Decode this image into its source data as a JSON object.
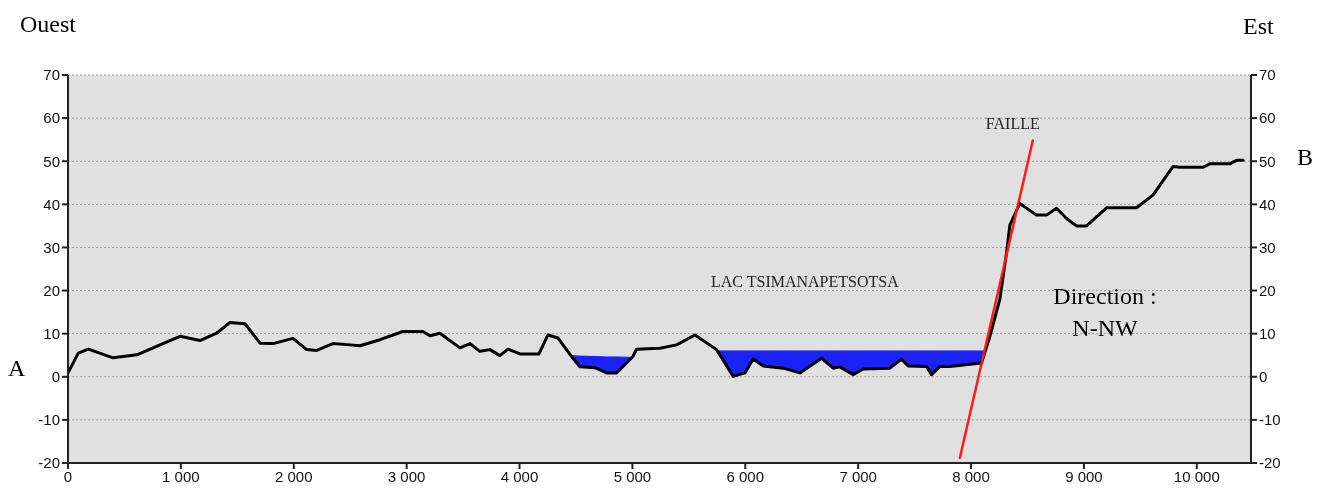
{
  "chart_data": {
    "type": "line",
    "xlim": [
      0,
      10480
    ],
    "xticks": [
      0,
      {
        "value": 1000,
        "label": "1 000"
      },
      {
        "value": 2000,
        "label": "2 000"
      },
      {
        "value": 3000,
        "label": "3 000"
      },
      {
        "value": 4000,
        "label": "4 000"
      },
      {
        "value": 5000,
        "label": "5 000"
      },
      {
        "value": 6000,
        "label": "6 000"
      },
      {
        "value": 7000,
        "label": "7 000"
      },
      {
        "value": 8000,
        "label": "8 000"
      },
      {
        "value": 9000,
        "label": "9 000"
      },
      {
        "value": 10000,
        "label": "10 000"
      }
    ],
    "ylim": [
      -20,
      70
    ],
    "yticks": [
      -20,
      -10,
      0,
      10,
      20,
      30,
      40,
      50,
      60,
      70
    ],
    "y2lim": [
      -20,
      70
    ],
    "y2ticks": [
      -20,
      -10,
      0,
      10,
      20,
      30,
      40,
      50,
      60,
      70
    ],
    "grid": "y",
    "line_style": "solid",
    "series": [
      {
        "type": "area",
        "color": "#1a22f5",
        "x": [
          4461,
          4535,
          4668,
          4772,
          4860,
          5004
        ],
        "values": [
          4.9,
          4.8,
          4.7,
          4.6,
          4.6,
          4.5
        ]
      },
      {
        "type": "area",
        "color": "#1a22f5",
        "x": [
          5746,
          5893,
          5997,
          6070,
          6159,
          6336,
          6484,
          6676,
          6779,
          6838,
          6956,
          7045,
          7281,
          7384,
          7443,
          7606,
          7650,
          7724,
          7812,
          8093,
          8120
        ],
        "values": [
          6.0,
          6.0,
          6.0,
          6.0,
          6.0,
          6.0,
          6.0,
          6.0,
          6.0,
          6.0,
          6.0,
          6.0,
          6.0,
          6.0,
          6.0,
          6.0,
          6.0,
          6.0,
          6.0,
          6.0,
          6.0
        ]
      },
      {
        "color": "#000000",
        "x": [
          0,
          91,
          180,
          399,
          611,
          815,
          992,
          1169,
          1317,
          1435,
          1568,
          1701,
          1816,
          1993,
          2114,
          2203,
          2347,
          2498,
          2586,
          2764,
          2967,
          3144,
          3206,
          3295,
          3472,
          3561,
          3649,
          3738,
          3826,
          3897,
          4004,
          4172,
          4252,
          4340,
          4461,
          4535,
          4668,
          4772,
          4860,
          5004,
          5037,
          5243,
          5392,
          5554,
          5746,
          5893,
          5997,
          6070,
          6159,
          6336,
          6484,
          6676,
          6779,
          6838,
          6956,
          7045,
          7281,
          7384,
          7443,
          7606,
          7650,
          7724,
          7812,
          8093,
          8167,
          8255,
          8315,
          8344,
          8432,
          8580,
          8669,
          8757,
          8846,
          8934,
          9023,
          9200,
          9466,
          9613,
          9790,
          9850,
          10056,
          10115,
          10292,
          10351,
          10410
        ],
        "values": [
          0.9,
          5.5,
          6.4,
          4.4,
          5.1,
          7.4,
          9.4,
          8.4,
          10.1,
          12.6,
          12.3,
          7.8,
          7.7,
          8.9,
          6.3,
          6.1,
          7.7,
          7.4,
          7.2,
          8.6,
          10.5,
          10.5,
          9.5,
          10.1,
          6.7,
          7.7,
          5.9,
          6.3,
          4.9,
          6.4,
          5.3,
          5.3,
          9.7,
          9.0,
          4.7,
          2.3,
          2.1,
          0.9,
          0.9,
          4.7,
          6.4,
          6.6,
          7.4,
          9.7,
          6.3,
          0.1,
          0.9,
          4.1,
          2.5,
          2.0,
          0.9,
          4.3,
          2.0,
          2.3,
          0.5,
          1.8,
          2.0,
          4.1,
          2.5,
          2.4,
          0.5,
          2.4,
          2.4,
          3.2,
          9.4,
          18.0,
          28.9,
          35.2,
          40.2,
          37.5,
          37.5,
          39.1,
          36.7,
          35.0,
          35.0,
          39.2,
          39.2,
          42.2,
          48.8,
          48.6,
          48.6,
          49.4,
          49.4,
          50.2,
          50.2
        ]
      },
      {
        "type": "line",
        "name": "FAILLE",
        "color": "#ff1a1a",
        "x": [
          7901,
          8547
        ],
        "values": [
          -18.8,
          54.8
        ]
      }
    ],
    "annotations": [
      "Ouest",
      "Est",
      "A",
      "B",
      "LAC TSIMANAPETSOTSA",
      "Direction :\nN-NW"
    ]
  }
}
